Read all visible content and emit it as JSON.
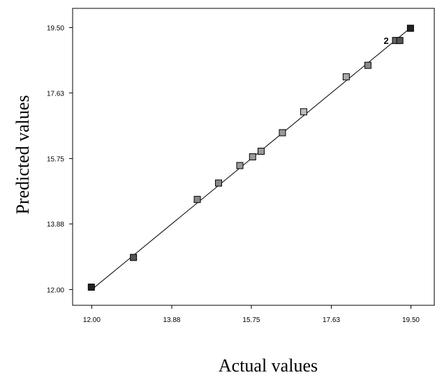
{
  "chart_data": {
    "type": "scatter",
    "title": "",
    "xlabel": "Actual values",
    "ylabel": "Predicted values",
    "xlim": [
      11.55,
      20.05
    ],
    "ylim": [
      11.55,
      20.05
    ],
    "x_ticks": [
      "12.00",
      "13.88",
      "15.75",
      "17.63",
      "19.50"
    ],
    "y_ticks": [
      "12.00",
      "13.88",
      "15.75",
      "17.63",
      "19.50"
    ],
    "grid": false,
    "reference_line": {
      "from": [
        12.0,
        12.0
      ],
      "to": [
        19.5,
        19.5
      ]
    },
    "points": [
      {
        "x": 11.99,
        "y": 12.07,
        "shade": "#222222"
      },
      {
        "x": 12.98,
        "y": 12.92,
        "shade": "#555555"
      },
      {
        "x": 14.48,
        "y": 14.58,
        "shade": "#888888"
      },
      {
        "x": 14.98,
        "y": 15.05,
        "shade": "#888888"
      },
      {
        "x": 15.48,
        "y": 15.55,
        "shade": "#999999"
      },
      {
        "x": 15.78,
        "y": 15.8,
        "shade": "#999999"
      },
      {
        "x": 15.98,
        "y": 15.96,
        "shade": "#999999"
      },
      {
        "x": 16.48,
        "y": 16.49,
        "shade": "#999999"
      },
      {
        "x": 16.98,
        "y": 17.09,
        "shade": "#bbbbbb"
      },
      {
        "x": 17.98,
        "y": 18.09,
        "shade": "#aaaaaa"
      },
      {
        "x": 18.49,
        "y": 18.42,
        "shade": "#888888"
      },
      {
        "x": 19.14,
        "y": 19.13,
        "shade": "#666666"
      },
      {
        "x": 19.24,
        "y": 19.13,
        "shade": "#555555"
      },
      {
        "x": 19.49,
        "y": 19.48,
        "shade": "#222222"
      }
    ],
    "annotations": [
      {
        "text": "2",
        "x": 18.92,
        "y": 19.13
      }
    ]
  }
}
